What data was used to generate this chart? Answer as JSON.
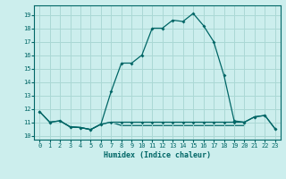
{
  "title": "",
  "xlabel": "Humidex (Indice chaleur)",
  "background_color": "#cceeed",
  "grid_color": "#aad8d5",
  "line_color": "#006666",
  "x_ticks": [
    0,
    1,
    2,
    3,
    4,
    5,
    6,
    7,
    8,
    9,
    10,
    11,
    12,
    13,
    14,
    15,
    16,
    17,
    18,
    19,
    20,
    21,
    22,
    23
  ],
  "y_ticks": [
    10,
    11,
    12,
    13,
    14,
    15,
    16,
    17,
    18,
    19
  ],
  "xlim": [
    -0.5,
    23.5
  ],
  "ylim": [
    9.7,
    19.7
  ],
  "line1_x": [
    0,
    1,
    2,
    3,
    4,
    5,
    6,
    7,
    8,
    9,
    10,
    11,
    12,
    13,
    14,
    15,
    16,
    17,
    18,
    19,
    20,
    21,
    22,
    23
  ],
  "line1_y": [
    11.8,
    11.0,
    11.1,
    10.65,
    10.6,
    10.45,
    10.85,
    13.3,
    15.4,
    15.4,
    16.0,
    18.0,
    18.0,
    18.6,
    18.5,
    19.1,
    18.2,
    17.0,
    14.5,
    11.1,
    11.0,
    11.4,
    11.5,
    10.5
  ],
  "line2_x": [
    0,
    1,
    2,
    3,
    4,
    5,
    6,
    7,
    8,
    9,
    10,
    11,
    12,
    13,
    14,
    15,
    16,
    17,
    18,
    19,
    20,
    21,
    22,
    23
  ],
  "line2_y": [
    11.8,
    11.0,
    11.1,
    10.65,
    10.6,
    10.45,
    10.85,
    11.0,
    11.0,
    11.0,
    11.0,
    11.0,
    11.0,
    11.0,
    11.0,
    11.0,
    11.0,
    11.0,
    11.0,
    11.0,
    11.0,
    11.4,
    11.5,
    10.5
  ],
  "line3_x": [
    2,
    3,
    4,
    5,
    6,
    7,
    8,
    9,
    10,
    11,
    12,
    13,
    14,
    15,
    16,
    17,
    18,
    20
  ],
  "line3_y": [
    11.1,
    10.65,
    10.6,
    10.45,
    10.85,
    11.0,
    10.75,
    10.75,
    10.75,
    10.75,
    10.75,
    10.75,
    10.75,
    10.75,
    10.75,
    10.75,
    10.75,
    10.75
  ]
}
